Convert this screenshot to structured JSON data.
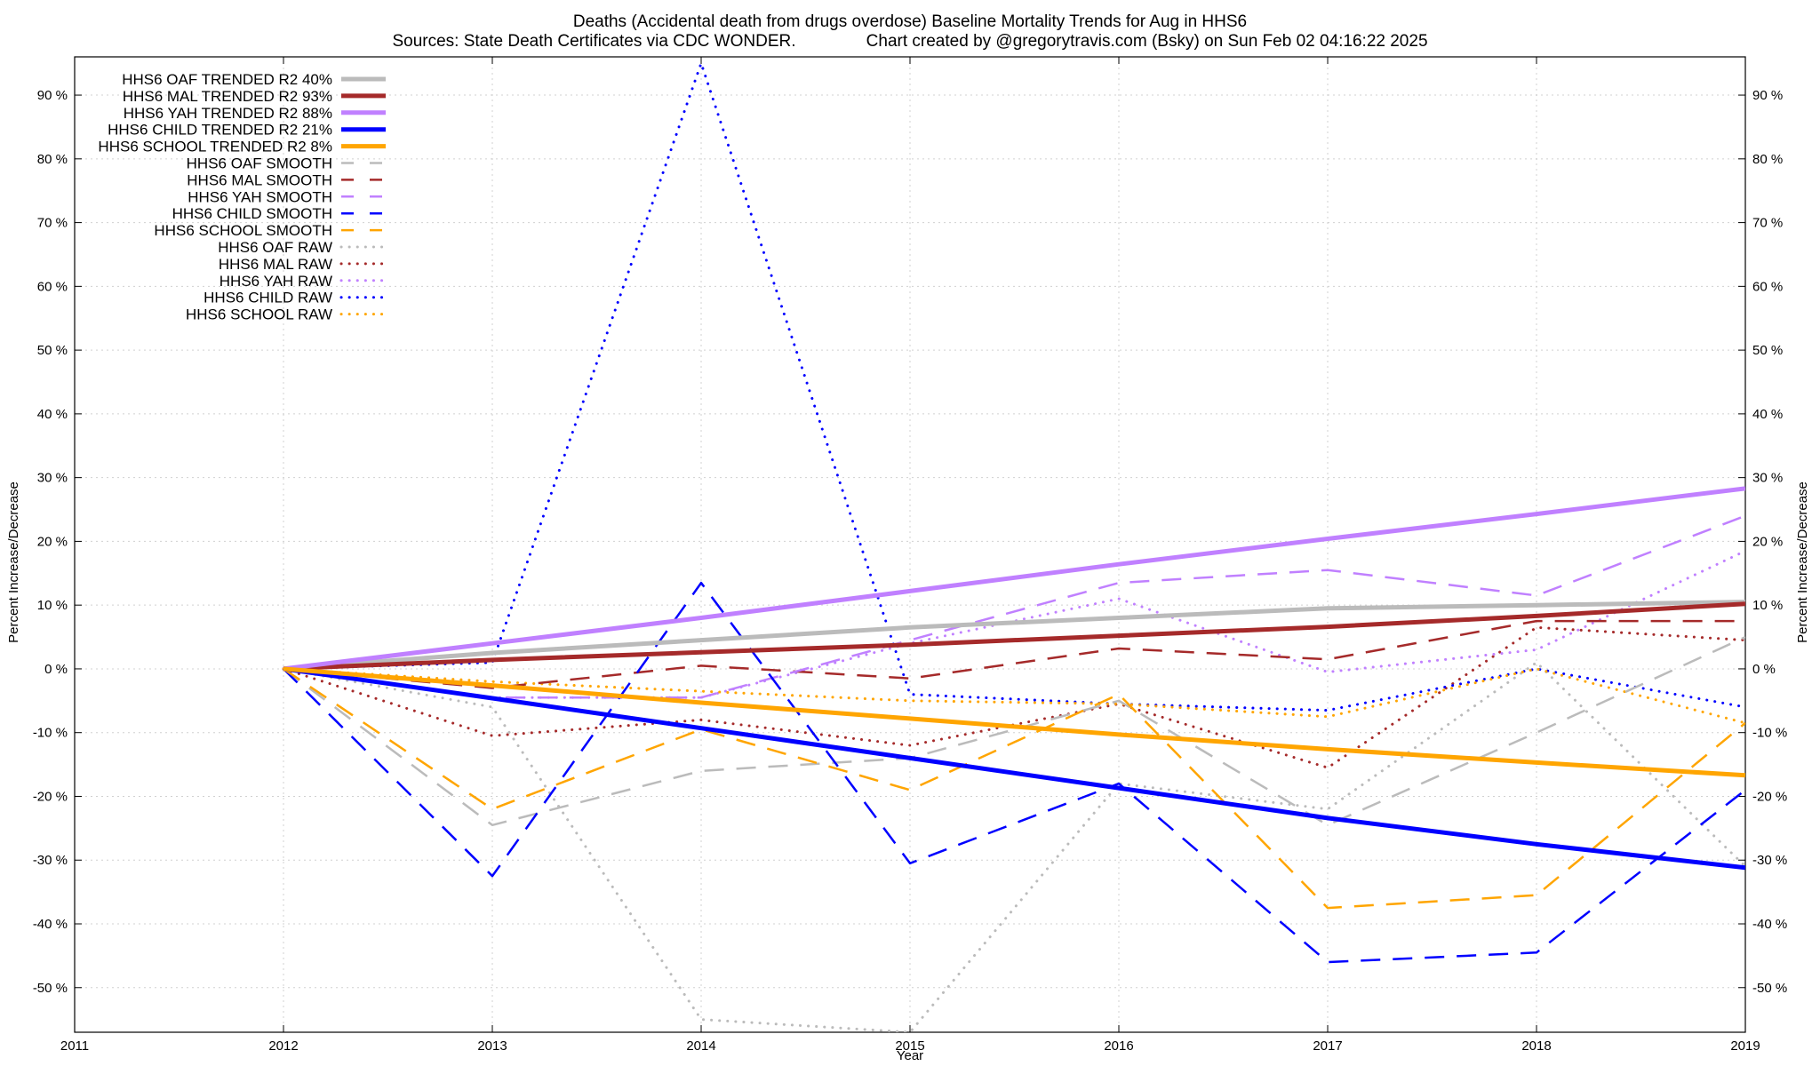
{
  "colors": {
    "OAF": "#bbbbbb",
    "MAL": "#a52a2a",
    "YAH": "#c080ff",
    "CHILD": "#0000ff",
    "SCHOOL": "#ffa500",
    "grid": "#d0d0d0",
    "axis": "#000000"
  },
  "chart_data": {
    "type": "line",
    "title": "Deaths (Accidental death from drugs overdose)  Baseline Mortality Trends for Aug in HHS6",
    "subtitle": "Sources: State Death Certificates via CDC WONDER.               Chart created by @gregorytravis.com (Bsky) on Sun Feb 02 04:16:22 2025",
    "xlabel": "Year",
    "ylabel": "Percent Increase/Decrease",
    "xlim": [
      2011,
      2019
    ],
    "ylim": [
      -57,
      96
    ],
    "x_ticks": [
      "2011",
      "2012",
      "2013",
      "2014",
      "2015",
      "2016",
      "2017",
      "2018",
      "2019"
    ],
    "y_ticks": [
      {
        "value": 90,
        "label": "90 %"
      },
      {
        "value": 80,
        "label": "80 %"
      },
      {
        "value": 70,
        "label": "70 %"
      },
      {
        "value": 60,
        "label": "60 %"
      },
      {
        "value": 50,
        "label": "50 %"
      },
      {
        "value": 40,
        "label": "40 %"
      },
      {
        "value": 30,
        "label": "30 %"
      },
      {
        "value": 20,
        "label": "20 %"
      },
      {
        "value": 10,
        "label": "10 %"
      },
      {
        "value": 0,
        "label": "0 %"
      },
      {
        "value": -10,
        "label": "-10 %"
      },
      {
        "value": -20,
        "label": "-20 %"
      },
      {
        "value": -30,
        "label": "-30 %"
      },
      {
        "value": -40,
        "label": "-40 %"
      },
      {
        "value": -50,
        "label": "-50 %"
      }
    ],
    "grid": true,
    "legend_position": "top-left",
    "series": [
      {
        "name": "HHS6 OAF TRENDED R2",
        "r2": "40%",
        "group": "OAF",
        "style": "trended",
        "x": [
          2012,
          2013,
          2014,
          2015,
          2016,
          2017,
          2018,
          2019
        ],
        "y": [
          0,
          2.5,
          4.5,
          6.5,
          8.0,
          9.5,
          10.0,
          10.5
        ]
      },
      {
        "name": "HHS6 MAL TRENDED R2",
        "r2": "93%",
        "group": "MAL",
        "style": "trended",
        "x": [
          2012,
          2013,
          2014,
          2015,
          2016,
          2017,
          2018,
          2019
        ],
        "y": [
          0,
          1.4,
          2.6,
          3.8,
          5.2,
          6.6,
          8.3,
          10.2
        ]
      },
      {
        "name": "HHS6 YAH TRENDED R2",
        "r2": "88%",
        "group": "YAH",
        "style": "trended",
        "x": [
          2012,
          2013,
          2014,
          2015,
          2016,
          2017,
          2018,
          2019
        ],
        "y": [
          0,
          4.0,
          8.0,
          12.2,
          16.4,
          20.4,
          24.3,
          28.3
        ]
      },
      {
        "name": "HHS6 CHILD TRENDED R2",
        "r2": "21%",
        "group": "CHILD",
        "style": "trended",
        "x": [
          2012,
          2013,
          2014,
          2015,
          2016,
          2017,
          2018,
          2019
        ],
        "y": [
          0,
          -4.6,
          -9.3,
          -14.0,
          -18.7,
          -23.4,
          -27.5,
          -31.2
        ]
      },
      {
        "name": "HHS6 SCHOOL TRENDED R2",
        "r2": "8%",
        "group": "SCHOOL",
        "style": "trended",
        "x": [
          2012,
          2013,
          2014,
          2015,
          2016,
          2017,
          2018,
          2019
        ],
        "y": [
          0,
          -2.6,
          -5.3,
          -7.8,
          -10.3,
          -12.6,
          -14.7,
          -16.7
        ]
      },
      {
        "name": "HHS6 OAF SMOOTH",
        "r2": "",
        "group": "OAF",
        "style": "smooth",
        "x": [
          2012,
          2013,
          2014,
          2015,
          2016,
          2017,
          2018,
          2019
        ],
        "y": [
          0,
          -24.5,
          -16.0,
          -14.0,
          -5.0,
          -24.5,
          -10.0,
          5.0
        ]
      },
      {
        "name": "HHS6 MAL SMOOTH",
        "r2": "",
        "group": "MAL",
        "style": "smooth",
        "x": [
          2012,
          2013,
          2014,
          2015,
          2016,
          2017,
          2018,
          2019
        ],
        "y": [
          0,
          -3.0,
          0.5,
          -1.5,
          3.2,
          1.5,
          7.5,
          7.5
        ]
      },
      {
        "name": "HHS6 YAH SMOOTH",
        "r2": "",
        "group": "YAH",
        "style": "smooth",
        "x": [
          2012,
          2013,
          2014,
          2015,
          2016,
          2017,
          2018,
          2019
        ],
        "y": [
          0,
          -4.5,
          -4.5,
          4.5,
          13.5,
          15.5,
          11.5,
          24.0
        ]
      },
      {
        "name": "HHS6 CHILD SMOOTH",
        "r2": "",
        "group": "CHILD",
        "style": "smooth",
        "x": [
          2012,
          2013,
          2014,
          2015,
          2016,
          2017,
          2018,
          2019
        ],
        "y": [
          0,
          -32.5,
          13.5,
          -30.5,
          -18.0,
          -46.0,
          -44.5,
          -19.0
        ]
      },
      {
        "name": "HHS6 SCHOOL SMOOTH",
        "r2": "",
        "group": "SCHOOL",
        "style": "smooth",
        "x": [
          2012,
          2013,
          2014,
          2015,
          2016,
          2017,
          2018,
          2019
        ],
        "y": [
          0,
          -22.0,
          -9.5,
          -19.0,
          -4.0,
          -37.5,
          -35.5,
          -8.5
        ]
      },
      {
        "name": "HHS6 OAF RAW",
        "r2": "",
        "group": "OAF",
        "style": "raw",
        "x": [
          2012,
          2013,
          2014,
          2015,
          2016,
          2017,
          2018,
          2019
        ],
        "y": [
          0,
          -6.0,
          -55.0,
          -57.0,
          -18.0,
          -22.0,
          1.0,
          -31.0
        ]
      },
      {
        "name": "HHS6 MAL RAW",
        "r2": "",
        "group": "MAL",
        "style": "raw",
        "x": [
          2012,
          2013,
          2014,
          2015,
          2016,
          2017,
          2018,
          2019
        ],
        "y": [
          0,
          -10.5,
          -8.0,
          -12.0,
          -5.5,
          -15.5,
          6.5,
          4.5
        ]
      },
      {
        "name": "HHS6 YAH RAW",
        "r2": "",
        "group": "YAH",
        "style": "raw",
        "x": [
          2012,
          2013,
          2014,
          2015,
          2016,
          2017,
          2018,
          2019
        ],
        "y": [
          0,
          -4.5,
          -4.5,
          4.0,
          11.0,
          -0.5,
          3.0,
          18.5
        ]
      },
      {
        "name": "HHS6 CHILD RAW",
        "r2": "",
        "group": "CHILD",
        "style": "raw",
        "x": [
          2012,
          2013,
          2014,
          2015,
          2016,
          2017,
          2018,
          2019
        ],
        "y": [
          0,
          1.0,
          95.0,
          -4.0,
          -5.5,
          -6.5,
          0.0,
          -6.0
        ]
      },
      {
        "name": "HHS6 SCHOOL RAW",
        "r2": "",
        "group": "SCHOOL",
        "style": "raw",
        "x": [
          2012,
          2013,
          2014,
          2015,
          2016,
          2017,
          2018,
          2019
        ],
        "y": [
          0,
          -2.0,
          -3.5,
          -5.0,
          -5.5,
          -7.5,
          0.0,
          -8.5
        ]
      }
    ]
  }
}
